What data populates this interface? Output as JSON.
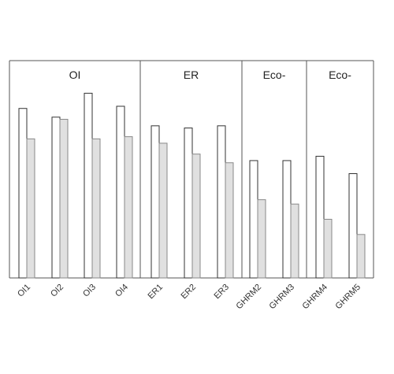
{
  "chart_data": {
    "type": "bar",
    "title": "",
    "xlabel": "",
    "ylabel": "",
    "ylim": [
      0,
      100
    ],
    "grid": false,
    "legend": "none",
    "panels": [
      {
        "label": "OI",
        "categories": [
          "OI1",
          "OI2",
          "OI3",
          "OI4"
        ]
      },
      {
        "label": "ER",
        "categories": [
          "ER1",
          "ER2",
          "ER3"
        ]
      },
      {
        "label": "Eco-",
        "categories": [
          "GHRM2",
          "GHRM3"
        ]
      },
      {
        "label": "Eco-",
        "categories": [
          "GHRM4",
          "GHRM5"
        ]
      }
    ],
    "categories": [
      "OI1",
      "OI2",
      "OI3",
      "OI4",
      "ER1",
      "ER2",
      "ER3",
      "GHRM2",
      "GHRM3",
      "GHRM4",
      "GHRM5"
    ],
    "series": [
      {
        "values": [
          78,
          74,
          85,
          79,
          70,
          69,
          70,
          54,
          54,
          56,
          48
        ],
        "color": "#ffffff"
      },
      {
        "values": [
          64,
          73,
          64,
          65,
          62,
          57,
          53,
          36,
          34,
          27,
          20
        ],
        "color": "#e0e0e0"
      }
    ]
  }
}
